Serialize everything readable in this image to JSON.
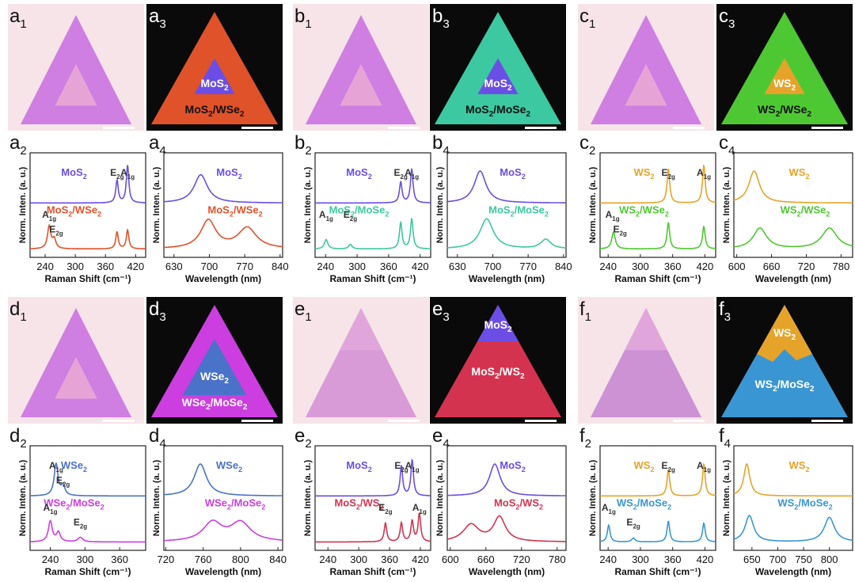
{
  "labels": {
    "a1": [
      "a",
      "1"
    ],
    "a2": [
      "a",
      "2"
    ],
    "a3": [
      "a",
      "3"
    ],
    "a4": [
      "a",
      "4"
    ],
    "b1": [
      "b",
      "1"
    ],
    "b2": [
      "b",
      "2"
    ],
    "b3": [
      "b",
      "3"
    ],
    "b4": [
      "b",
      "4"
    ],
    "c1": [
      "c",
      "1"
    ],
    "c2": [
      "c",
      "2"
    ],
    "c3": [
      "c",
      "3"
    ],
    "c4": [
      "c",
      "4"
    ],
    "d1": [
      "d",
      "1"
    ],
    "d2": [
      "d",
      "2"
    ],
    "d3": [
      "d",
      "3"
    ],
    "d4": [
      "d",
      "4"
    ],
    "e1": [
      "e",
      "1"
    ],
    "e2": [
      "e",
      "2"
    ],
    "e3": [
      "e",
      "3"
    ],
    "e4": [
      "e",
      "4"
    ],
    "f1": [
      "f",
      "1"
    ],
    "f2": [
      "f",
      "2"
    ],
    "f3": [
      "f",
      "3"
    ],
    "f4": [
      "f",
      "4"
    ]
  },
  "axes": {
    "raman_xlabel": "Raman Shift (cm⁻¹)",
    "pl_xlabel": "Wavelength (nm)",
    "ylabel": "Norm. Inten. (a. u.)"
  },
  "colors": {
    "MoS2": "#6b4ee6",
    "WS2": "#e6a32a",
    "WSe2": "#4a72c8",
    "MoS2/WSe2": "#e0522a",
    "MoS2/MoSe2": "#3cc8a0",
    "WS2/WSe2": "#4ec832",
    "WSe2/MoSe2": "#cc3ee0",
    "MoS2/WS2": "#d4334f",
    "WS2/MoSe2": "#3a96d2",
    "optical_bg": "#f6e4e8",
    "map_bg": "#0a0a0a"
  },
  "maps": {
    "a3": {
      "outer": "MoS2/WSe2",
      "inner": "MoS2"
    },
    "b3": {
      "outer": "MoS2/MoSe2",
      "inner": "MoS2"
    },
    "c3": {
      "outer": "WS2/WSe2",
      "inner": "WS2"
    },
    "d3": {
      "outer": "WSe2/MoSe2",
      "inner": "WSe2"
    },
    "e3": {
      "outer": "MoS2/WS2",
      "inner": "MoS2"
    },
    "f3": {
      "outer": "WS2/MoSe2",
      "inner": "WS2"
    }
  },
  "chart_data": [
    {
      "panel": "a2",
      "type": "line",
      "xlabel": "Raman Shift (cm⁻¹)",
      "ylabel": "Norm. Inten. (a. u.)",
      "xlim": [
        210,
        440
      ],
      "xticks": [
        240,
        300,
        360,
        420
      ],
      "series": [
        {
          "name": "MoS2",
          "role": "top",
          "peaks": [
            [
              383,
              0.6,
              3
            ],
            [
              404,
              1.0,
              3
            ]
          ]
        },
        {
          "name": "MoS2/WSe2",
          "role": "bottom",
          "peaks": [
            [
              248,
              0.6,
              4
            ],
            [
              258,
              0.25,
              4
            ],
            [
              383,
              0.45,
              3
            ],
            [
              404,
              0.5,
              3
            ]
          ]
        }
      ],
      "annotations": [
        {
          "text": [
            "E",
            "2g"
          ],
          "x": 383,
          "row": "top"
        },
        {
          "text": [
            "A",
            "1g"
          ],
          "x": 404,
          "row": "top"
        },
        {
          "text": [
            "A",
            "1g"
          ],
          "x": 248,
          "row": "bottom"
        },
        {
          "text": [
            "E",
            "2g"
          ],
          "x": 262,
          "row": "bottom2"
        }
      ]
    },
    {
      "panel": "a4",
      "type": "line",
      "xlabel": "Wavelength (nm)",
      "ylabel": "Norm. Inten. (a. u.)",
      "xlim": [
        610,
        845
      ],
      "xticks": [
        630,
        700,
        770,
        840
      ],
      "series": [
        {
          "name": "MoS2",
          "role": "top",
          "peaks": [
            [
              683,
              0.75,
              16
            ]
          ]
        },
        {
          "name": "MoS2/WSe2",
          "role": "bottom",
          "peaks": [
            [
              698,
              0.75,
              18
            ],
            [
              775,
              0.55,
              22
            ]
          ]
        }
      ]
    },
    {
      "panel": "b2",
      "type": "line",
      "xlabel": "Raman Shift (cm⁻¹)",
      "ylabel": "Norm. Inten. (a. u.)",
      "xlim": [
        220,
        440
      ],
      "xticks": [
        240,
        300,
        360,
        420
      ],
      "series": [
        {
          "name": "MoS2",
          "role": "top",
          "peaks": [
            [
              383,
              0.55,
              3
            ],
            [
              404,
              0.9,
              3
            ]
          ]
        },
        {
          "name": "MoS2/MoSe2",
          "role": "bottom",
          "peaks": [
            [
              241,
              0.25,
              4
            ],
            [
              287,
              0.12,
              4
            ],
            [
              383,
              0.7,
              3
            ],
            [
              404,
              0.8,
              3
            ]
          ]
        }
      ],
      "annotations": [
        {
          "text": [
            "E",
            "2g"
          ],
          "x": 383,
          "row": "top"
        },
        {
          "text": [
            "A",
            "1g"
          ],
          "x": 404,
          "row": "top"
        },
        {
          "text": [
            "A",
            "1g"
          ],
          "x": 241,
          "row": "bottom"
        },
        {
          "text": [
            "E",
            "2g"
          ],
          "x": 287,
          "row": "bottom"
        }
      ]
    },
    {
      "panel": "b4",
      "type": "line",
      "xlabel": "Wavelength (nm)",
      "ylabel": "Norm. Inten. (a. u.)",
      "xlim": [
        610,
        845
      ],
      "xticks": [
        630,
        700,
        770,
        840
      ],
      "series": [
        {
          "name": "MoS2",
          "role": "top",
          "peaks": [
            [
              675,
              0.85,
              14
            ]
          ]
        },
        {
          "name": "MoS2/MoSe2",
          "role": "bottom",
          "peaks": [
            [
              688,
              0.8,
              16
            ],
            [
              805,
              0.25,
              12
            ]
          ]
        }
      ]
    },
    {
      "panel": "c2",
      "type": "line",
      "xlabel": "Raman Shift (cm⁻¹)",
      "ylabel": "Norm. Inten. (a. u.)",
      "xlim": [
        225,
        440
      ],
      "xticks": [
        240,
        300,
        360,
        420
      ],
      "series": [
        {
          "name": "WS2",
          "role": "top",
          "peaks": [
            [
              352,
              0.9,
              3
            ],
            [
              418,
              1.0,
              3
            ]
          ]
        },
        {
          "name": "WS2/WSe2",
          "role": "bottom",
          "peaks": [
            [
              250,
              0.45,
              4
            ],
            [
              352,
              0.7,
              3
            ],
            [
              418,
              0.6,
              3
            ]
          ]
        }
      ],
      "annotations": [
        {
          "text": [
            "E",
            "2g"
          ],
          "x": 352,
          "row": "top"
        },
        {
          "text": [
            "A",
            "1g"
          ],
          "x": 418,
          "row": "top"
        },
        {
          "text": [
            "A",
            "1g"
          ],
          "x": 248,
          "row": "bottom"
        },
        {
          "text": [
            "E",
            "2g"
          ],
          "x": 262,
          "row": "bottom2"
        }
      ]
    },
    {
      "panel": "c4",
      "type": "line",
      "xlabel": "Wavelength (nm)",
      "ylabel": "Norm. Inten. (a. u.)",
      "xlim": [
        595,
        800
      ],
      "xticks": [
        600,
        660,
        720,
        780
      ],
      "series": [
        {
          "name": "WS2",
          "role": "top",
          "peaks": [
            [
              630,
              0.85,
              11
            ]
          ]
        },
        {
          "name": "WS2/WSe2",
          "role": "bottom",
          "peaks": [
            [
              640,
              0.55,
              14
            ],
            [
              760,
              0.55,
              16
            ]
          ]
        }
      ]
    },
    {
      "panel": "d2",
      "type": "line",
      "xlabel": "Raman Shift (cm⁻¹)",
      "ylabel": "Norm. Inten. (a. u.)",
      "xlim": [
        205,
        405
      ],
      "xticks": [
        240,
        300,
        360
      ],
      "series": [
        {
          "name": "WSe2",
          "role": "top",
          "peaks": [
            [
              250,
              0.85,
              4
            ],
            [
              262,
              0.25,
              4
            ]
          ]
        },
        {
          "name": "WSe2/MoSe2",
          "role": "bottom",
          "peaks": [
            [
              240,
              0.55,
              4
            ],
            [
              254,
              0.25,
              4
            ],
            [
              292,
              0.12,
              5
            ]
          ]
        }
      ],
      "annotations": [
        {
          "text": [
            "A",
            "1g"
          ],
          "x": 250,
          "row": "top"
        },
        {
          "text": [
            "E",
            "2g"
          ],
          "x": 262,
          "row": "top2"
        },
        {
          "text": [
            "A",
            "1g"
          ],
          "x": 240,
          "row": "bottom"
        },
        {
          "text": [
            "E",
            "2g"
          ],
          "x": 292,
          "row": "bottom2"
        }
      ]
    },
    {
      "panel": "d4",
      "type": "line",
      "xlabel": "Wavelength (nm)",
      "ylabel": "Norm. Inten. (a. u.)",
      "xlim": [
        718,
        845
      ],
      "xticks": [
        720,
        760,
        800,
        840
      ],
      "series": [
        {
          "name": "WSe2",
          "role": "top",
          "peaks": [
            [
              757,
              0.85,
              8
            ]
          ]
        },
        {
          "name": "WSe2/MoSe2",
          "role": "bottom",
          "peaks": [
            [
              770,
              0.5,
              12
            ],
            [
              800,
              0.5,
              13
            ]
          ]
        }
      ]
    },
    {
      "panel": "e2",
      "type": "line",
      "xlabel": "Raman Shift (cm⁻¹)",
      "ylabel": "Norm. Inten. (a. u.)",
      "xlim": [
        215,
        440
      ],
      "xticks": [
        240,
        300,
        360,
        420
      ],
      "series": [
        {
          "name": "MoS2",
          "role": "top",
          "peaks": [
            [
              383,
              0.8,
              3
            ],
            [
              404,
              0.95,
              3
            ]
          ]
        },
        {
          "name": "MoS2/WS2",
          "role": "bottom",
          "peaks": [
            [
              352,
              0.5,
              3
            ],
            [
              383,
              0.5,
              3
            ],
            [
              404,
              0.55,
              3
            ],
            [
              418,
              0.75,
              3
            ]
          ]
        }
      ],
      "annotations": [
        {
          "text": [
            "E",
            "2g"
          ],
          "x": 383,
          "row": "top"
        },
        {
          "text": [
            "A",
            "1g"
          ],
          "x": 404,
          "row": "top"
        },
        {
          "text": [
            "E",
            "2g"
          ],
          "x": 352,
          "row": "bottom"
        },
        {
          "text": [
            "A",
            "1g"
          ],
          "x": 418,
          "row": "bottom"
        }
      ]
    },
    {
      "panel": "e4",
      "type": "line",
      "xlabel": "Wavelength (nm)",
      "ylabel": "Norm. Inten. (a. u.)",
      "xlim": [
        595,
        795
      ],
      "xticks": [
        600,
        660,
        720,
        780
      ],
      "series": [
        {
          "name": "MoS2",
          "role": "top",
          "peaks": [
            [
              675,
              0.85,
              11
            ]
          ]
        },
        {
          "name": "MoS2/WS2",
          "role": "bottom",
          "peaks": [
            [
              635,
              0.45,
              16
            ],
            [
              683,
              0.65,
              12
            ]
          ]
        }
      ]
    },
    {
      "panel": "f2",
      "type": "line",
      "xlabel": "Raman Shift (cm⁻¹)",
      "ylabel": "Norm. Inten. (a. u.)",
      "xlim": [
        225,
        440
      ],
      "xticks": [
        240,
        300,
        360,
        420
      ],
      "series": [
        {
          "name": "WS2",
          "role": "top",
          "peaks": [
            [
              352,
              0.7,
              3
            ],
            [
              418,
              0.85,
              3
            ]
          ]
        },
        {
          "name": "WS2/MoSe2",
          "role": "bottom",
          "peaks": [
            [
              241,
              0.45,
              3
            ],
            [
              287,
              0.1,
              4
            ],
            [
              352,
              0.55,
              3
            ],
            [
              418,
              0.5,
              3
            ]
          ]
        }
      ],
      "annotations": [
        {
          "text": [
            "E",
            "2g"
          ],
          "x": 352,
          "row": "top"
        },
        {
          "text": [
            "A",
            "1g"
          ],
          "x": 418,
          "row": "top"
        },
        {
          "text": [
            "A",
            "1g"
          ],
          "x": 241,
          "row": "bottom"
        },
        {
          "text": [
            "E",
            "2g"
          ],
          "x": 287,
          "row": "bottom2"
        }
      ]
    },
    {
      "panel": "f4",
      "type": "line",
      "xlabel": "Wavelength (nm)",
      "ylabel": "Norm. Inten. (a. u.)",
      "xlim": [
        615,
        845
      ],
      "xticks": [
        650,
        700,
        750,
        800
      ],
      "series": [
        {
          "name": "WS2",
          "role": "top",
          "peaks": [
            [
              640,
              0.85,
              7
            ]
          ]
        },
        {
          "name": "WS2/MoSe2",
          "role": "bottom",
          "peaks": [
            [
              645,
              0.7,
              10
            ],
            [
              800,
              0.65,
              12
            ]
          ]
        }
      ]
    }
  ]
}
